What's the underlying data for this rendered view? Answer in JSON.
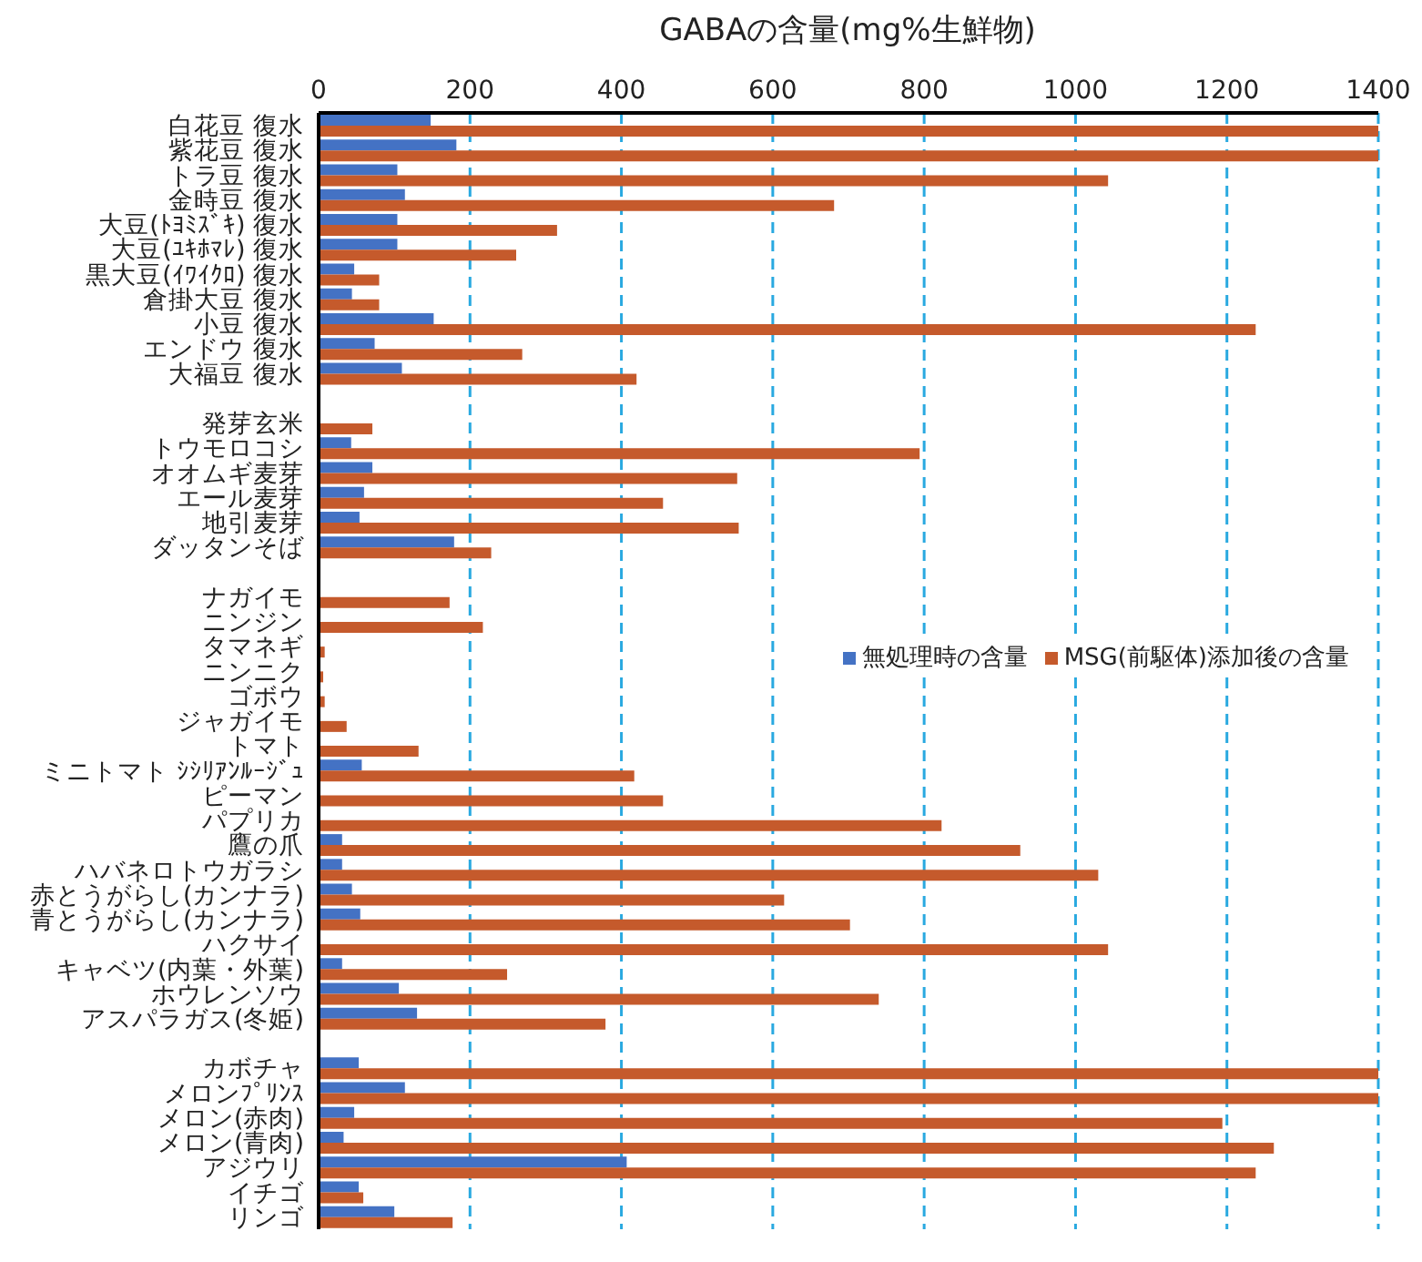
{
  "chart_data": {
    "type": "bar",
    "orientation": "horizontal",
    "title": "GABAの含量(mg%生鮮物)",
    "categories": [
      "白花豆 復水",
      "紫花豆 復水",
      "トラ豆 復水",
      "金時豆 復水",
      "大豆(ﾄﾖﾐｽﾞｷ) 復水",
      "大豆(ﾕｷﾎﾏﾚ) 復水",
      "黒大豆(ｲﾜｲｸﾛ) 復水",
      "倉掛大豆 復水",
      "小豆 復水",
      "エンドウ 復水",
      "大福豆 復水",
      null,
      "発芽玄米",
      "トウモロコシ",
      "オオムギ麦芽",
      "エール麦芽",
      "地引麦芽",
      "ダッタンそば",
      null,
      "ナガイモ",
      "ニンジン",
      "タマネギ",
      "ニンニク",
      "ゴボウ",
      "ジャガイモ",
      "トマト",
      "ミニトマト ｼｼﾘｱﾝﾙｰｼﾞｭ",
      "ピーマン",
      "パプリカ",
      "鷹の爪",
      "ハバネロトウガラシ",
      "赤とうがらし(カンナラ)",
      "青とうがらし(カンナラ)",
      "ハクサイ",
      "キャベツ(内葉・外葉)",
      "ホウレンソウ",
      "アスパラガス(冬姫)",
      null,
      "カボチャ",
      "メロンﾌﾟﾘﾝｽ",
      "メロン(赤肉)",
      "メロン(青肉)",
      "アジウリ",
      "イチゴ",
      "リンゴ"
    ],
    "series": [
      {
        "name": "無処理時の含量",
        "color": "#4472c4",
        "values": [
          148,
          182,
          104,
          114,
          104,
          104,
          47,
          44,
          152,
          74,
          110,
          null,
          null,
          43,
          71,
          60,
          54,
          179,
          null,
          null,
          null,
          null,
          null,
          null,
          null,
          null,
          57,
          null,
          null,
          31,
          31,
          44,
          55,
          null,
          31,
          106,
          130,
          null,
          53,
          114,
          47,
          33,
          407,
          53,
          100
        ]
      },
      {
        "name": "MSG(前駆体)添加後の含量",
        "color": "#c55a2c",
        "values": [
          1400,
          1400,
          1043,
          681,
          315,
          261,
          80,
          80,
          1238,
          269,
          420,
          null,
          71,
          794,
          553,
          455,
          555,
          228,
          null,
          173,
          217,
          8,
          6,
          8,
          37,
          132,
          417,
          455,
          823,
          927,
          1030,
          615,
          702,
          1043,
          249,
          740,
          379,
          null,
          1400,
          1400,
          1194,
          1262,
          1238,
          59,
          177
        ]
      }
    ],
    "xlim": [
      0,
      1400
    ],
    "xticks": [
      0,
      200,
      400,
      600,
      800,
      1000,
      1200,
      1400
    ],
    "grid": "x",
    "legend": "right"
  }
}
